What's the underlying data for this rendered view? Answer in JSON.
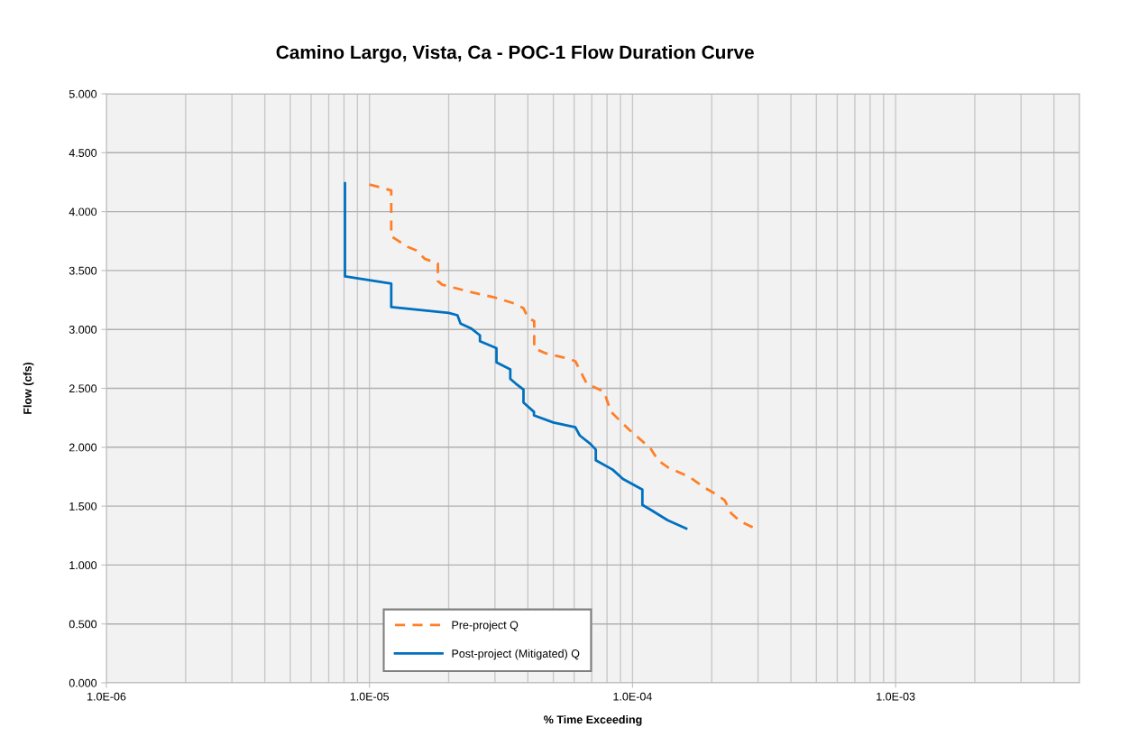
{
  "chart_data": {
    "type": "line",
    "title": "Camino Largo, Vista, Ca - POC-1 Flow Duration Curve",
    "xlabel": "% Time Exceeding",
    "ylabel": "Flow (cfs)",
    "log": "x",
    "xlim": [
      1e-06,
      0.005
    ],
    "xticks": [
      {
        "value": 1e-06,
        "label": "1.0E-06"
      },
      {
        "value": 1e-05,
        "label": "1.0E-05"
      },
      {
        "value": 0.0001,
        "label": "1.0E-04"
      },
      {
        "value": 0.001,
        "label": "1.0E-03"
      }
    ],
    "ylim": [
      0,
      5
    ],
    "yticks": [
      {
        "value": 0,
        "label": "0.000"
      },
      {
        "value": 0.5,
        "label": "0.500"
      },
      {
        "value": 1,
        "label": "1.000"
      },
      {
        "value": 1.5,
        "label": "1.500"
      },
      {
        "value": 2,
        "label": "2.000"
      },
      {
        "value": 2.5,
        "label": "2.500"
      },
      {
        "value": 3,
        "label": "3.000"
      },
      {
        "value": 3.5,
        "label": "3.500"
      },
      {
        "value": 4,
        "label": "4.000"
      },
      {
        "value": 4.5,
        "label": "4.500"
      },
      {
        "value": 5,
        "label": "5.000"
      }
    ],
    "grid": true,
    "legend": "bottom",
    "marker": "none",
    "series": [
      {
        "name": "Pre-project Q",
        "color": "#ff7f27",
        "line_style": "dashed",
        "x": [
          1e-05,
          1.21e-05,
          1.21e-05,
          1.27e-05,
          1.4e-05,
          1.51e-05,
          1.62e-05,
          1.82e-05,
          1.82e-05,
          1.89e-05,
          2.4e-05,
          3e-05,
          3.56e-05,
          3.85e-05,
          4e-05,
          4.23e-05,
          4.23e-05,
          4.64e-05,
          5.73e-05,
          6.06e-05,
          6.7e-05,
          7.8e-05,
          8.28e-05,
          9.7e-05,
          0.000117,
          0.000125,
          0.000136,
          0.000164,
          0.000187,
          0.000208,
          0.000224,
          0.000237,
          0.000257,
          0.000293
        ],
        "values": [
          4.23,
          4.18,
          3.79,
          3.76,
          3.7,
          3.67,
          3.6,
          3.56,
          3.41,
          3.38,
          3.32,
          3.27,
          3.22,
          3.18,
          3.1,
          3.07,
          2.84,
          2.8,
          2.75,
          2.73,
          2.54,
          2.47,
          2.3,
          2.15,
          1.99,
          1.89,
          1.83,
          1.75,
          1.66,
          1.6,
          1.55,
          1.44,
          1.37,
          1.31
        ]
      },
      {
        "name": "Post-project (Mitigated) Q",
        "color": "#0070c0",
        "line_style": "solid",
        "x": [
          8.07e-06,
          8.07e-06,
          8.07e-06,
          1.21e-05,
          1.21e-05,
          2e-05,
          2.16e-05,
          2.22e-05,
          2.43e-05,
          2.63e-05,
          2.63e-05,
          3.04e-05,
          3.04e-05,
          3.43e-05,
          3.43e-05,
          3.6e-05,
          3.85e-05,
          3.85e-05,
          4.22e-05,
          4.22e-05,
          5e-05,
          6.06e-05,
          6.3e-05,
          6.9e-05,
          7.25e-05,
          7.25e-05,
          8.4e-05,
          9.2e-05,
          0.000109,
          0.000109,
          0.000117,
          0.000136,
          0.00016
        ],
        "values": [
          4.24,
          3.47,
          3.45,
          3.39,
          3.19,
          3.14,
          3.12,
          3.05,
          3.01,
          2.95,
          2.9,
          2.84,
          2.72,
          2.66,
          2.58,
          2.54,
          2.49,
          2.38,
          2.3,
          2.27,
          2.21,
          2.17,
          2.1,
          2.03,
          1.98,
          1.89,
          1.81,
          1.73,
          1.64,
          1.51,
          1.47,
          1.38,
          1.31
        ]
      }
    ]
  }
}
